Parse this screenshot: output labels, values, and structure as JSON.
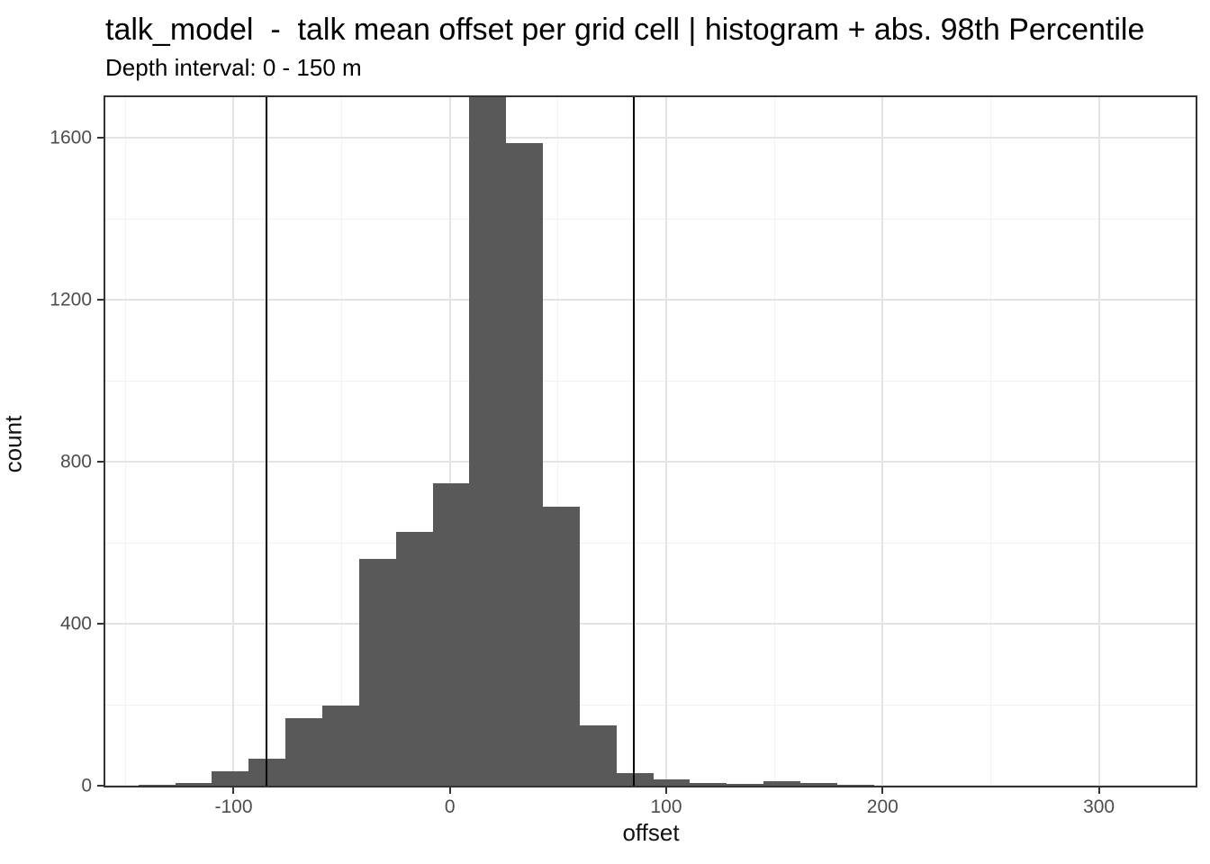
{
  "header": {
    "title": "talk_model  -  talk mean offset per grid cell | histogram + abs. 98th Percentile",
    "subtitle": "Depth interval: 0 - 150 m"
  },
  "colors": {
    "bar_fill": "#595959",
    "panel_border": "#333333",
    "grid_major": "#E4E4E4",
    "grid_minor": "#F2F2F2",
    "vline": "#000000",
    "tick_mark": "#333333",
    "tick_label": "#4D4D4D",
    "text": "#000000",
    "background": "#FFFFFF"
  },
  "chart_data": {
    "type": "bar",
    "subtype": "histogram",
    "title": "talk_model  -  talk mean offset per grid cell | histogram + abs. 98th Percentile",
    "subtitle": "Depth interval: 0 - 150 m",
    "xlabel": "offset",
    "ylabel": "count",
    "bin_start": -161,
    "bin_width": 17,
    "counts": [
      1,
      3,
      6,
      36,
      66,
      167,
      198,
      561,
      628,
      746,
      1705,
      1588,
      690,
      148,
      32,
      15,
      7,
      4,
      12,
      6,
      2,
      0,
      0,
      0,
      0,
      0,
      0,
      0,
      0,
      0
    ],
    "vlines": [
      -84.8,
      84.8
    ],
    "vlines_meaning": "abs. 98th Percentile",
    "x_ticks": [
      -100,
      0,
      100,
      200,
      300
    ],
    "y_ticks": [
      0,
      400,
      800,
      1200,
      1600
    ],
    "x_minor_ticks": [
      -150,
      -50,
      50,
      150,
      250
    ],
    "y_minor_ticks": [
      200,
      600,
      1000,
      1400
    ],
    "xlim": [
      -159.3,
      344.7
    ],
    "ylim": [
      0,
      1701
    ],
    "grid": true,
    "legend": false
  }
}
